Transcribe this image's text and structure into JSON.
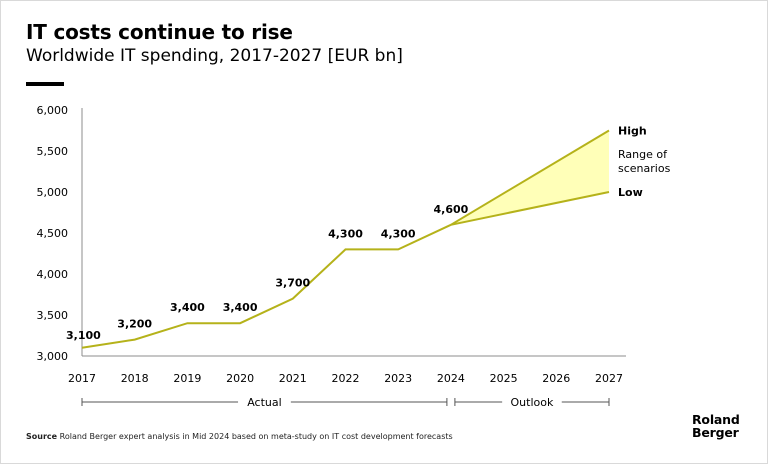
{
  "title": "IT costs continue to rise",
  "subtitle": "Worldwide IT spending, 2017-2027 [EUR bn]",
  "source": {
    "label": "Source",
    "text": "Roland Berger expert analysis in Mid 2024 based on meta-study on IT cost development forecasts"
  },
  "logo": {
    "line1": "Roland",
    "line2": "Berger"
  },
  "colors": {
    "line": "#b5b21a",
    "band": "#ffffb8",
    "axis": "#8c8c8c"
  },
  "chart_data": {
    "type": "line",
    "title": "Worldwide IT spending, 2017-2027 [EUR bn]",
    "x": [
      "2017",
      "2018",
      "2019",
      "2020",
      "2021",
      "2022",
      "2023",
      "2024",
      "2025",
      "2026",
      "2027"
    ],
    "ylim": [
      3000,
      6000
    ],
    "yticks": [
      3000,
      3500,
      4000,
      4500,
      5000,
      5500,
      6000
    ],
    "ytick_labels": [
      "3,000",
      "3,500",
      "4,000",
      "4,500",
      "5,000",
      "5,500",
      "6,000"
    ],
    "grid": false,
    "actual": {
      "years": [
        "2017",
        "2018",
        "2019",
        "2020",
        "2021",
        "2022",
        "2023",
        "2024"
      ],
      "values": [
        3100,
        3200,
        3400,
        3400,
        3700,
        4300,
        4300,
        4600
      ],
      "labels": [
        "3,100",
        "3,200",
        "3,400",
        "3,400",
        "3,700",
        "4,300",
        "4,300",
        "4,600"
      ]
    },
    "scenarios": {
      "high": {
        "label": "High",
        "years": [
          "2024",
          "2027"
        ],
        "values": [
          4600,
          5750
        ]
      },
      "low": {
        "label": "Low",
        "years": [
          "2024",
          "2027"
        ],
        "values": [
          4600,
          5000
        ]
      },
      "range_label": [
        "Range of",
        "scenarios"
      ]
    },
    "periods": [
      {
        "label": "Actual",
        "from": "2017",
        "to": "2024"
      },
      {
        "label": "Outlook",
        "from": "2024",
        "to": "2027"
      }
    ]
  }
}
